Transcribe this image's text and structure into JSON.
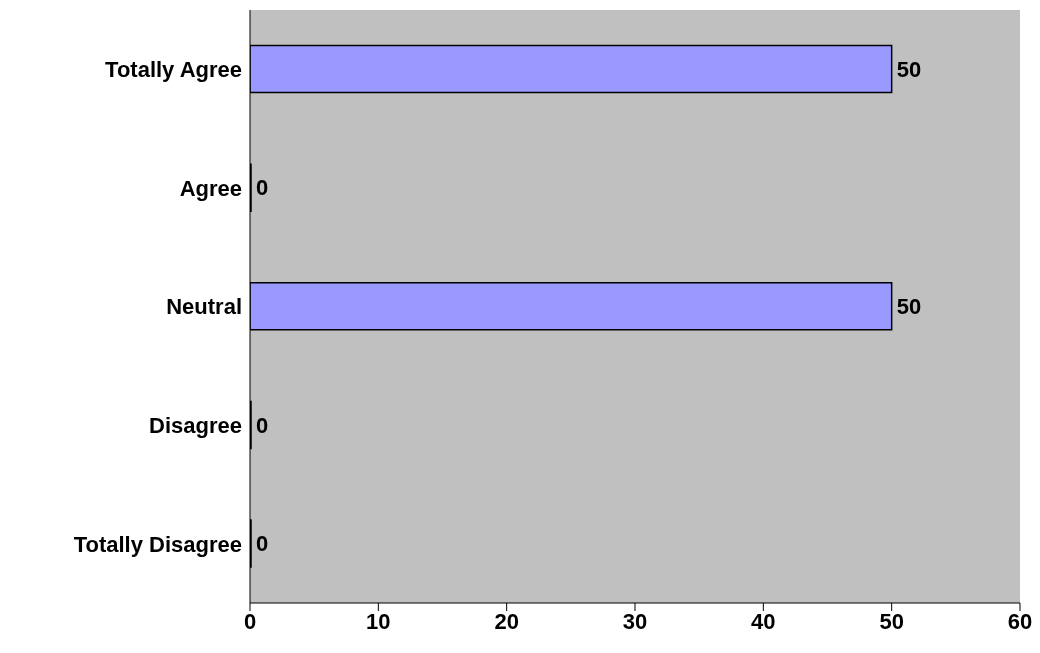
{
  "chart_data": {
    "type": "bar",
    "orientation": "horizontal",
    "categories": [
      "Totally Agree",
      "Agree",
      "Neutral",
      "Disagree",
      "Totally Disagree"
    ],
    "values": [
      50,
      0,
      50,
      0,
      0
    ],
    "color": "#9999ff",
    "xlim": [
      0,
      60
    ],
    "xticks": [
      0,
      10,
      20,
      30,
      40,
      50,
      60
    ],
    "data_labels": true,
    "grid": false
  }
}
